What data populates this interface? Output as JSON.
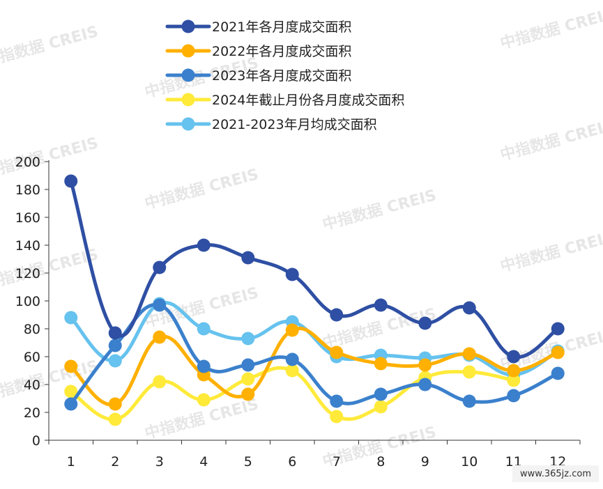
{
  "watermark": "中指数据 CREIS",
  "site_watermark": "www.365jz.com",
  "chart_data": {
    "type": "line",
    "categories": [
      "1",
      "2",
      "3",
      "4",
      "5",
      "6",
      "7",
      "8",
      "9",
      "10",
      "11",
      "12"
    ],
    "ylim": [
      0,
      200
    ],
    "yticks": [
      0,
      20,
      40,
      60,
      80,
      100,
      120,
      140,
      160,
      180,
      200
    ],
    "legend_position": "top",
    "grid": false,
    "series": [
      {
        "name": "2021年各月度成交面积",
        "color": "#2E4FA3",
        "values": [
          186,
          77,
          124,
          140,
          131,
          119,
          90,
          97,
          84,
          95,
          60,
          80
        ]
      },
      {
        "name": "2022年各月度成交面积",
        "color": "#FFB000",
        "values": [
          53,
          26,
          74,
          47,
          33,
          79,
          63,
          55,
          54,
          62,
          50,
          63
        ]
      },
      {
        "name": "2023年各月度成交面积",
        "color": "#3B80CC",
        "values": [
          26,
          68,
          97,
          53,
          54,
          58,
          28,
          33,
          40,
          28,
          32,
          48
        ]
      },
      {
        "name": "2024年截止月份各月度成交面积",
        "color": "#FFEA3A",
        "values": [
          35,
          15,
          42,
          29,
          44,
          50,
          17,
          24,
          45,
          49,
          43,
          null
        ]
      },
      {
        "name": "2021-2023年月均成交面积",
        "color": "#66C2EE",
        "values": [
          88,
          57,
          98,
          80,
          73,
          85,
          60,
          61,
          59,
          61,
          47,
          64
        ]
      }
    ]
  }
}
